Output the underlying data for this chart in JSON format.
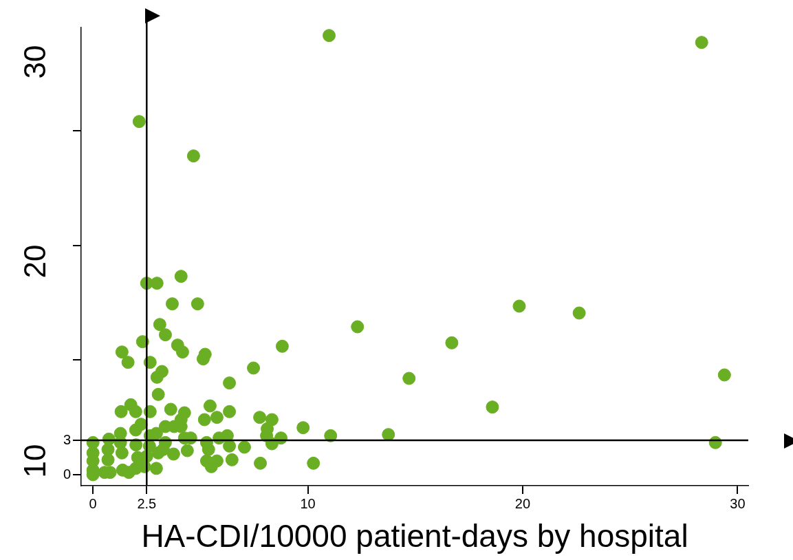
{
  "chart_data": {
    "type": "scatter",
    "xlabel": "HA-CDI/10000 patient-days by hospital",
    "annotations": [
      "30",
      "20",
      "10"
    ],
    "x": [
      0,
      0,
      0,
      0,
      0,
      0.74,
      0.7,
      0.7,
      0.54,
      0.8,
      1.28,
      1.28,
      1.35,
      1.38,
      1.67,
      1.99,
      2.0,
      1.99,
      2.08,
      2.24,
      2.66,
      2.63,
      2.5,
      2.4,
      2.95,
      3.04,
      2.95,
      3.37,
      3.37,
      3.27,
      3.75,
      3.78,
      4.1,
      4.26,
      4.26,
      4.55,
      4.39,
      5.19,
      5.45,
      5.29,
      5.38,
      5.29,
      5.51,
      5.77,
      5.87,
      6.25,
      6.35,
      5.77,
      6.35,
      6.47,
      7.05,
      7.79,
      7.76,
      8.33,
      8.11,
      8.08,
      8.33,
      8.75,
      9.78,
      10.26,
      11.06,
      2.66,
      1.31,
      1.76,
      1.99,
      3.62,
      3.04,
      2.98,
      3.21,
      2.66,
      1.63,
      1.35,
      2.31,
      3.11,
      3.37,
      3.94,
      4.17,
      5.22,
      5.13,
      3.69,
      4.87,
      2.5,
      2.98,
      4.1,
      6.35,
      7.47,
      8.81,
      4.1,
      14.71,
      16.7,
      12.31,
      18.59,
      13.75,
      19.84,
      22.63,
      29.39,
      28.97,
      28.33,
      10.99,
      2.15,
      4.68
    ],
    "values": [
      2.8,
      1.9,
      1.2,
      0.4,
      0,
      3.1,
      2.2,
      1.3,
      0.2,
      0.2,
      3.6,
      2.8,
      1.9,
      0.4,
      0.2,
      3.9,
      2.6,
      0.55,
      1.5,
      4.4,
      3.4,
      2.5,
      1.6,
      0.7,
      3.6,
      1.9,
      0.55,
      4.2,
      2.8,
      2.2,
      1.8,
      4.2,
      4.8,
      5.4,
      3.2,
      3.2,
      2.1,
      4.8,
      6.0,
      2.8,
      2.2,
      1.2,
      0.7,
      1.2,
      3.2,
      3.4,
      2.5,
      5.0,
      5.5,
      1.3,
      2.4,
      1.0,
      5.0,
      4.8,
      4.0,
      3.4,
      2.7,
      3.2,
      4.1,
      1.0,
      3.4,
      5.5,
      5.5,
      6.1,
      5.5,
      5.7,
      7.0,
      8.5,
      9.0,
      9.8,
      9.8,
      10.7,
      11.6,
      13.1,
      12.2,
      11.3,
      10.7,
      10.5,
      10.1,
      14.9,
      14.9,
      16.7,
      16.7,
      17.3,
      8.0,
      9.3,
      11.2,
      4.2,
      8.4,
      11.5,
      12.9,
      5.9,
      3.5,
      14.7,
      14.1,
      8.7,
      2.8,
      37.7,
      38.3,
      30.8,
      27.8
    ],
    "color": "#6aaf23",
    "marker": "circle",
    "grid": false,
    "legend": false,
    "xlim": [
      -0.55,
      30.5
    ],
    "ylim": [
      -0.96,
      39
    ],
    "xticks": [
      0,
      2.5,
      10,
      20,
      30
    ],
    "yticks": [
      0,
      3,
      {
        "value": 10,
        "label": null
      },
      {
        "value": 20,
        "label": null
      },
      {
        "value": 30,
        "label": null
      }
    ],
    "ref_lines": [
      {
        "axis": "y",
        "value": 3,
        "color": "#000000"
      },
      {
        "axis": "x",
        "value": 2.5,
        "color": "#000000"
      }
    ]
  }
}
